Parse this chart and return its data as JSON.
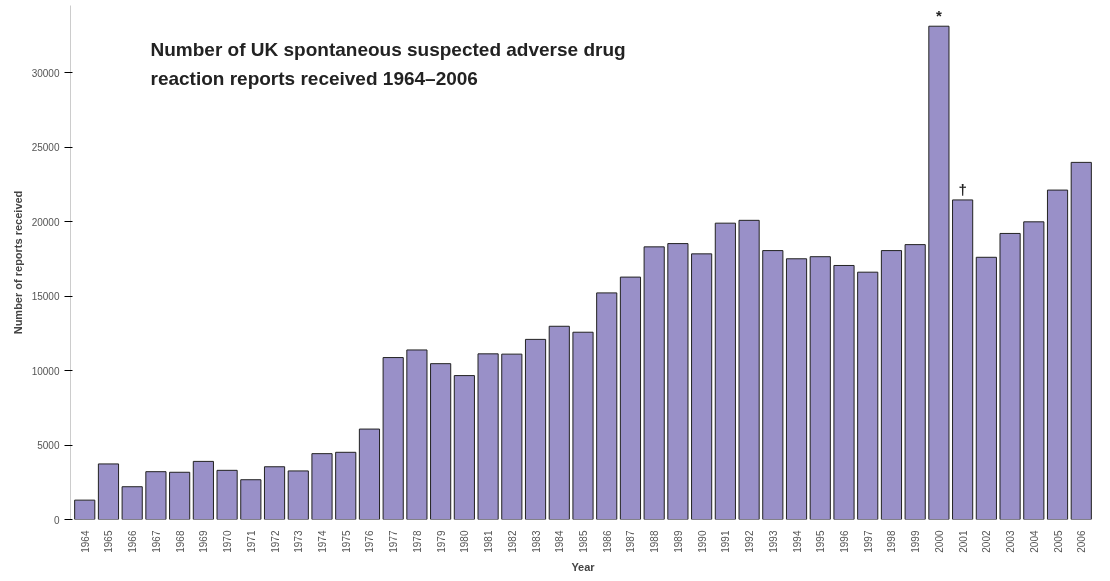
{
  "chart_data": {
    "type": "bar",
    "title": "Number of UK spontaneous suspected adverse drug reaction reports received 1964–2006",
    "xlabel": "Year",
    "ylabel": "Number of reports received",
    "categories": [
      "1964",
      "1965",
      "1966",
      "1967",
      "1968",
      "1969",
      "1970",
      "1971",
      "1972",
      "1973",
      "1974",
      "1975",
      "1976",
      "1977",
      "1978",
      "1979",
      "1980",
      "1981",
      "1982",
      "1983",
      "1984",
      "1985",
      "1986",
      "1987",
      "1988",
      "1989",
      "1990",
      "1991",
      "1992",
      "1993",
      "1994",
      "1995",
      "1996",
      "1997",
      "1998",
      "1999",
      "2000",
      "2001",
      "2002",
      "2003",
      "2004",
      "2005",
      "2006"
    ],
    "values": [
      1300,
      3730,
      2200,
      3210,
      3170,
      3900,
      3300,
      2670,
      3540,
      3260,
      4420,
      4510,
      6070,
      10870,
      11380,
      10460,
      9660,
      11120,
      11100,
      12090,
      12970,
      12570,
      15210,
      16270,
      18300,
      18520,
      17830,
      19890,
      20080,
      18050,
      17500,
      17640,
      17050,
      16600,
      18050,
      18450,
      33110,
      21450,
      17600,
      19200,
      19980,
      22110,
      23970
    ],
    "color": "#9990c8",
    "ylim": [
      0,
      34500
    ],
    "yticks": [
      0,
      5000,
      10000,
      15000,
      20000,
      25000,
      30000
    ],
    "grid": false,
    "annotations": [
      {
        "text": "*",
        "x": "2000",
        "y": 33110
      },
      {
        "text": "†",
        "x": "2001",
        "y": 21450
      }
    ]
  }
}
